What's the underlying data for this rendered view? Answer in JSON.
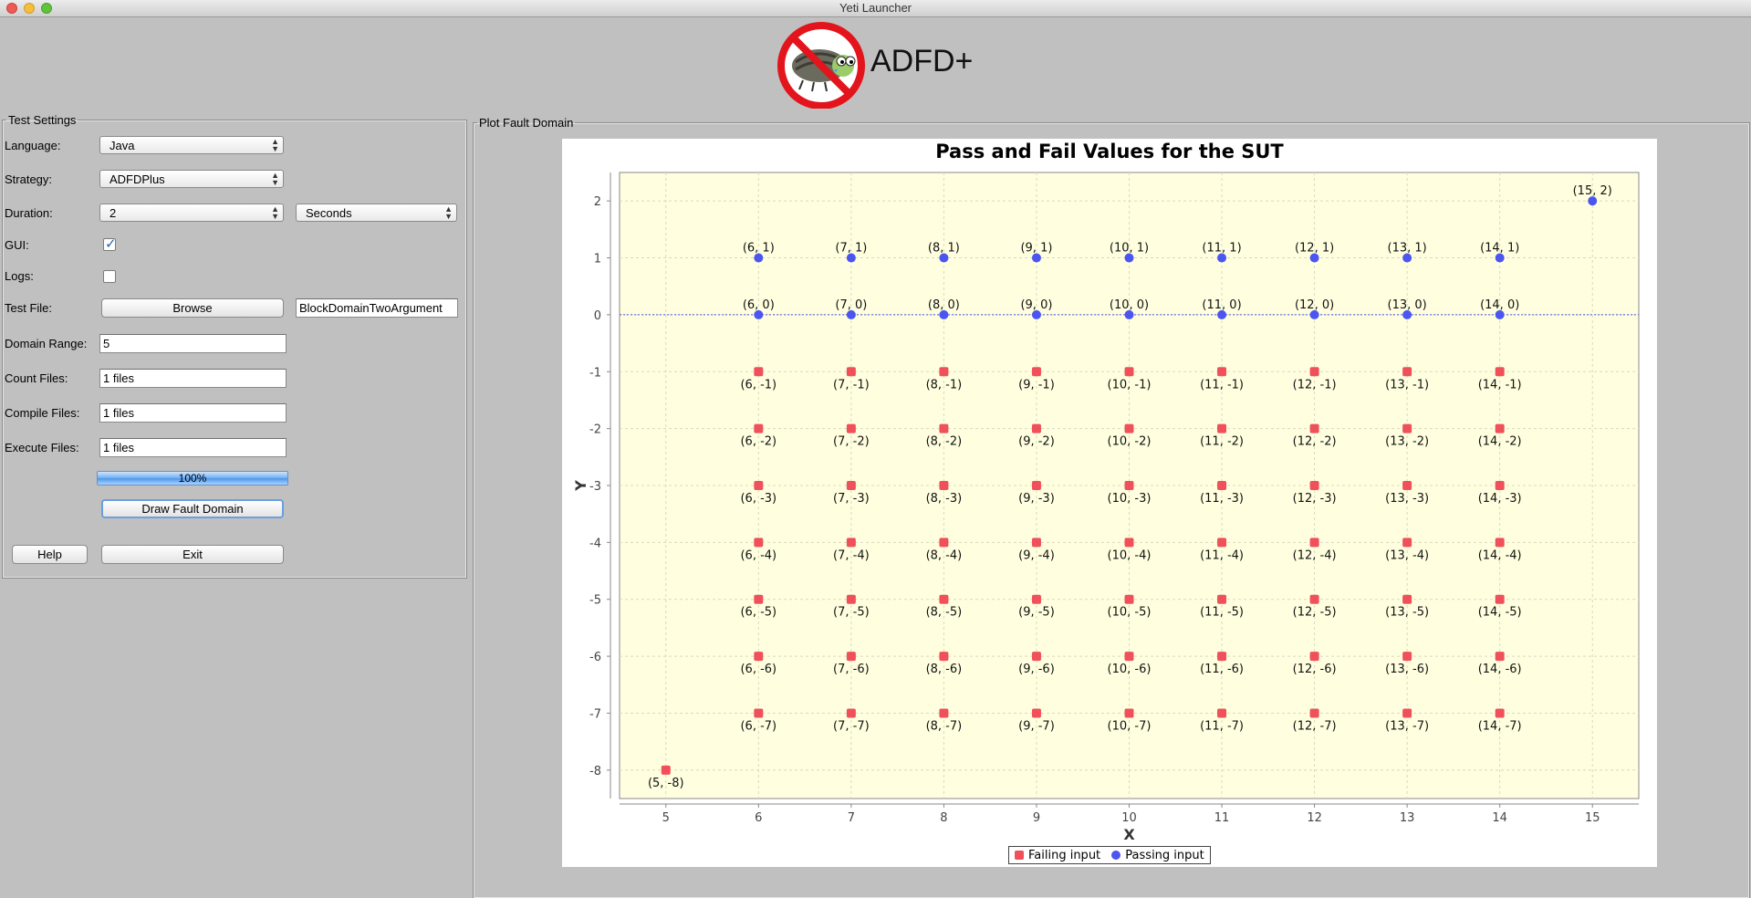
{
  "window": {
    "title": "Yeti Launcher"
  },
  "logo": {
    "icon": "no-bug-icon",
    "text": "ADFD+"
  },
  "settings": {
    "legend": "Test Settings",
    "language_label": "Language:",
    "language_value": "Java",
    "strategy_label": "Strategy:",
    "strategy_value": "ADFDPlus",
    "duration_label": "Duration:",
    "duration_value": "2",
    "duration_unit": "Seconds",
    "gui_label": "GUI:",
    "gui_checked": true,
    "logs_label": "Logs:",
    "logs_checked": false,
    "test_file_label": "Test File:",
    "browse_label": "Browse",
    "test_file_value": "BlockDomainTwoArgument",
    "domain_range_label": "Domain Range:",
    "domain_range_value": "5",
    "count_files_label": "Count Files:",
    "count_files_value": "1 files",
    "compile_files_label": "Compile Files:",
    "compile_files_value": "1 files",
    "execute_files_label": "Execute Files:",
    "execute_files_value": "1 files",
    "progress_text": "100%",
    "progress_fraction": 1.0,
    "draw_label": "Draw Fault Domain",
    "help_label": "Help",
    "exit_label": "Exit"
  },
  "plot": {
    "legend": "Plot Fault Domain"
  },
  "colors": {
    "fail": "#f0505a",
    "pass": "#4b55f0",
    "plot_bg": "#ffffe0"
  },
  "chart_data": {
    "type": "scatter",
    "title": "Pass and Fail Values for the SUT",
    "xlabel": "X",
    "ylabel": "Y",
    "xlim": [
      4.5,
      15.5
    ],
    "ylim": [
      -8.5,
      2.5
    ],
    "xticks": [
      5,
      6,
      7,
      8,
      9,
      10,
      11,
      12,
      13,
      14,
      15
    ],
    "yticks": [
      2,
      1,
      0,
      -1,
      -2,
      -3,
      -4,
      -5,
      -6,
      -7,
      -8
    ],
    "grid": true,
    "zero_line": true,
    "legend_position": "bottom",
    "series": [
      {
        "name": "Failing input",
        "marker": "square",
        "points": [
          [
            6,
            -1
          ],
          [
            7,
            -1
          ],
          [
            8,
            -1
          ],
          [
            9,
            -1
          ],
          [
            10,
            -1
          ],
          [
            11,
            -1
          ],
          [
            12,
            -1
          ],
          [
            13,
            -1
          ],
          [
            14,
            -1
          ],
          [
            6,
            -2
          ],
          [
            7,
            -2
          ],
          [
            8,
            -2
          ],
          [
            9,
            -2
          ],
          [
            10,
            -2
          ],
          [
            11,
            -2
          ],
          [
            12,
            -2
          ],
          [
            13,
            -2
          ],
          [
            14,
            -2
          ],
          [
            6,
            -3
          ],
          [
            7,
            -3
          ],
          [
            8,
            -3
          ],
          [
            9,
            -3
          ],
          [
            10,
            -3
          ],
          [
            11,
            -3
          ],
          [
            12,
            -3
          ],
          [
            13,
            -3
          ],
          [
            14,
            -3
          ],
          [
            6,
            -4
          ],
          [
            7,
            -4
          ],
          [
            8,
            -4
          ],
          [
            9,
            -4
          ],
          [
            10,
            -4
          ],
          [
            11,
            -4
          ],
          [
            12,
            -4
          ],
          [
            13,
            -4
          ],
          [
            14,
            -4
          ],
          [
            6,
            -5
          ],
          [
            7,
            -5
          ],
          [
            8,
            -5
          ],
          [
            9,
            -5
          ],
          [
            10,
            -5
          ],
          [
            11,
            -5
          ],
          [
            12,
            -5
          ],
          [
            13,
            -5
          ],
          [
            14,
            -5
          ],
          [
            6,
            -6
          ],
          [
            7,
            -6
          ],
          [
            8,
            -6
          ],
          [
            9,
            -6
          ],
          [
            10,
            -6
          ],
          [
            11,
            -6
          ],
          [
            12,
            -6
          ],
          [
            13,
            -6
          ],
          [
            14,
            -6
          ],
          [
            6,
            -7
          ],
          [
            7,
            -7
          ],
          [
            8,
            -7
          ],
          [
            9,
            -7
          ],
          [
            10,
            -7
          ],
          [
            11,
            -7
          ],
          [
            12,
            -7
          ],
          [
            13,
            -7
          ],
          [
            14,
            -7
          ],
          [
            5,
            -8
          ]
        ]
      },
      {
        "name": "Passing input",
        "marker": "circle",
        "points": [
          [
            6,
            1
          ],
          [
            7,
            1
          ],
          [
            8,
            1
          ],
          [
            9,
            1
          ],
          [
            10,
            1
          ],
          [
            11,
            1
          ],
          [
            12,
            1
          ],
          [
            13,
            1
          ],
          [
            14,
            1
          ],
          [
            6,
            0
          ],
          [
            7,
            0
          ],
          [
            8,
            0
          ],
          [
            9,
            0
          ],
          [
            10,
            0
          ],
          [
            11,
            0
          ],
          [
            12,
            0
          ],
          [
            13,
            0
          ],
          [
            14,
            0
          ],
          [
            15,
            2
          ]
        ]
      }
    ]
  }
}
